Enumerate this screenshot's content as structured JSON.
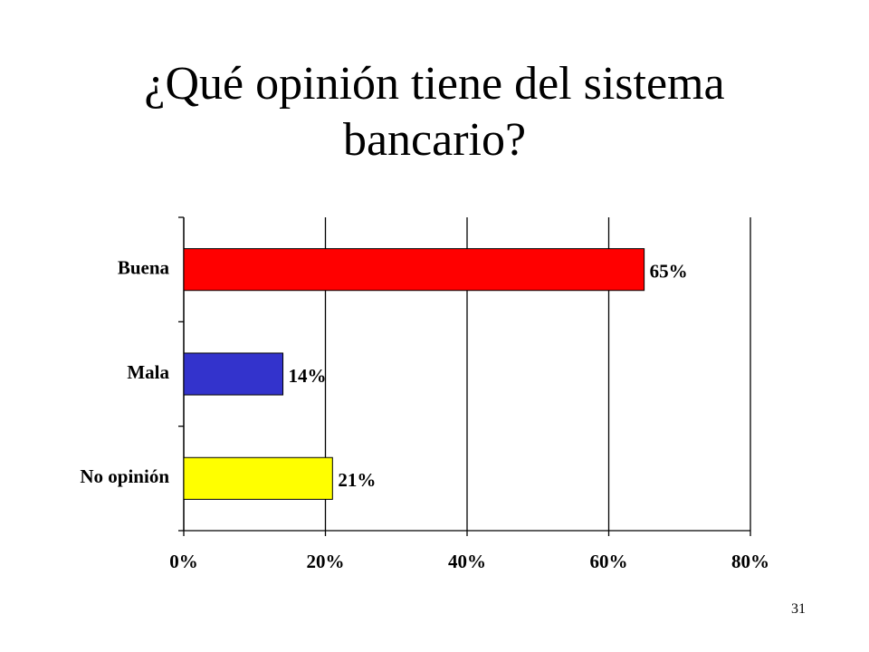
{
  "chart_data": {
    "type": "bar",
    "orientation": "horizontal",
    "title": "¿Qué opinión tiene del sistema bancario?",
    "categories": [
      "Buena",
      "Mala",
      "No opinión"
    ],
    "values": [
      65,
      14,
      21
    ],
    "value_labels": [
      "65%",
      "14%",
      "21%"
    ],
    "colors": [
      "#ff0000",
      "#3333cc",
      "#ffff00"
    ],
    "xlim": [
      0,
      80
    ],
    "xticks": [
      {
        "value": 0,
        "label": "0%"
      },
      {
        "value": 20,
        "label": "20%"
      },
      {
        "value": 40,
        "label": "40%"
      },
      {
        "value": 60,
        "label": "60%"
      },
      {
        "value": 80,
        "label": "80%"
      }
    ],
    "grid": true
  },
  "slide_number": "31"
}
